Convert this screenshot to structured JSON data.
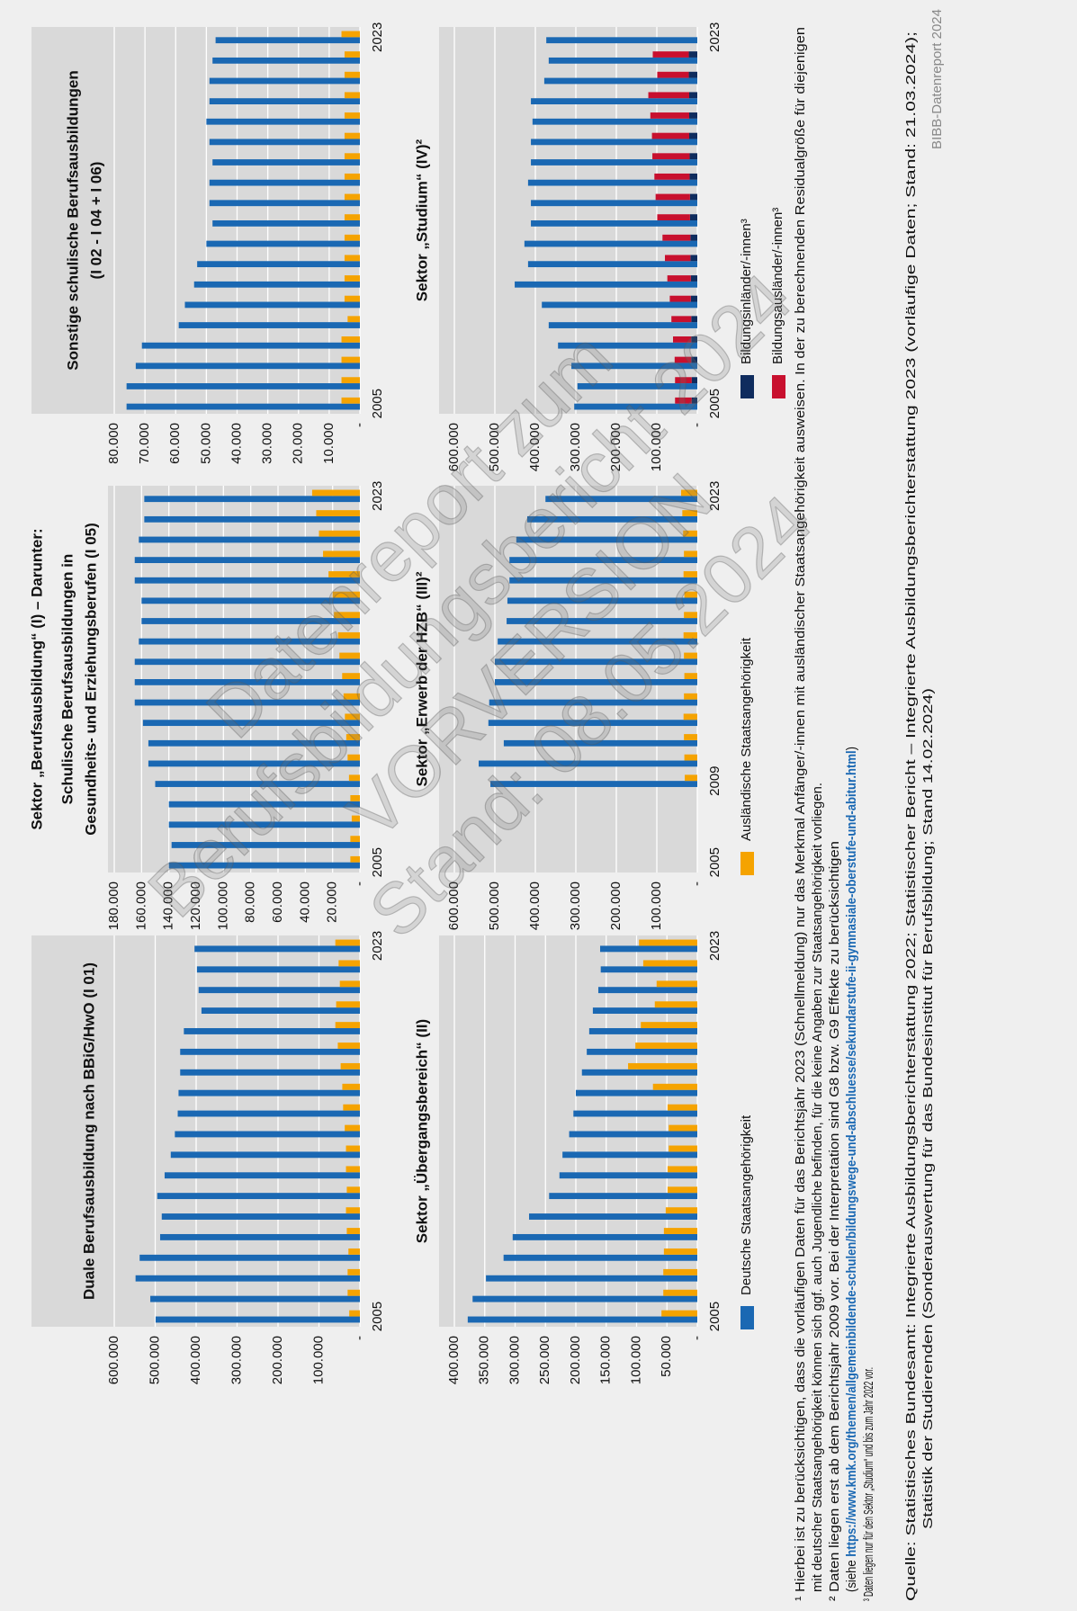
{
  "header": "Sektor „Berufsausbildung“ (I) – Darunter:",
  "chart_data": [
    {
      "type": "bar",
      "title": [
        "Duale Berufsausbildung nach BBiG/HwO (I 01)"
      ],
      "categories": [
        "2005",
        null,
        null,
        null,
        null,
        null,
        null,
        null,
        null,
        null,
        null,
        null,
        null,
        null,
        null,
        null,
        null,
        null,
        "2023"
      ],
      "series": [
        {
          "color": "#1a68b3",
          "values": [
            499000,
            512000,
            548000,
            538000,
            488000,
            484000,
            495000,
            477000,
            462000,
            452000,
            445000,
            443000,
            439000,
            439000,
            430000,
            387000,
            394000,
            398000,
            404000
          ]
        },
        {
          "color": "#f5a300",
          "values": [
            26000,
            30000,
            30000,
            28000,
            32000,
            34000,
            32000,
            34000,
            34000,
            37000,
            41000,
            43000,
            47000,
            54000,
            60000,
            58000,
            49000,
            52000,
            60000
          ]
        }
      ],
      "ylim": [
        0,
        600000
      ],
      "yticks": [
        {
          "value": 0,
          "label": "-"
        },
        {
          "value": 100000,
          "label": "100.000"
        },
        {
          "value": 200000,
          "label": "200.000"
        },
        {
          "value": 300000,
          "label": "300.000"
        },
        {
          "value": 400000,
          "label": "400.000"
        },
        {
          "value": 500000,
          "label": "500.000"
        },
        {
          "value": 600000,
          "label": "600.000"
        }
      ],
      "grid": true
    },
    {
      "type": "bar",
      "title": [
        "Schulische Berufsausbildungen in",
        "Gesundheits- und Erziehungsberufen (I 05)"
      ],
      "categories": [
        "2005",
        null,
        null,
        null,
        null,
        null,
        null,
        null,
        null,
        null,
        null,
        null,
        null,
        null,
        null,
        null,
        null,
        null,
        "2023"
      ],
      "series": [
        {
          "color": "#1a68b3",
          "values": [
            140000,
            138000,
            140000,
            140000,
            150000,
            155000,
            155000,
            159000,
            165000,
            165000,
            165000,
            162000,
            160000,
            160000,
            165000,
            165000,
            162000,
            158000,
            158000
          ]
        },
        {
          "color": "#f5a300",
          "values": [
            7000,
            7000,
            6000,
            7000,
            8000,
            9000,
            10000,
            11000,
            12000,
            13000,
            15000,
            16000,
            19000,
            20000,
            23000,
            27000,
            30000,
            32000,
            35000
          ]
        }
      ],
      "ylim": [
        0,
        180000
      ],
      "yticks": [
        {
          "value": 0,
          "label": "-"
        },
        {
          "value": 20000,
          "label": "20.000"
        },
        {
          "value": 40000,
          "label": "40.000"
        },
        {
          "value": 60000,
          "label": "60.000"
        },
        {
          "value": 80000,
          "label": "80.000"
        },
        {
          "value": 100000,
          "label": "100.000"
        },
        {
          "value": 120000,
          "label": "120.000"
        },
        {
          "value": 140000,
          "label": "140.000"
        },
        {
          "value": 160000,
          "label": "160.000"
        },
        {
          "value": 180000,
          "label": "180.000"
        }
      ],
      "grid": true
    },
    {
      "type": "bar",
      "title": [
        "Sonstige schulische Berufsausbildungen",
        "(I 02 - I 04 + I 06)"
      ],
      "categories": [
        "2005",
        null,
        null,
        null,
        null,
        null,
        null,
        null,
        null,
        null,
        null,
        null,
        null,
        null,
        null,
        null,
        null,
        null,
        "2023"
      ],
      "series": [
        {
          "color": "#1a68b3",
          "values": [
            76000,
            76000,
            73000,
            71000,
            59000,
            57000,
            54000,
            53000,
            50000,
            48000,
            49000,
            49000,
            48000,
            49000,
            50000,
            49000,
            49000,
            48000,
            47000
          ]
        },
        {
          "color": "#f5a300",
          "values": [
            6000,
            6000,
            6000,
            6000,
            4000,
            5000,
            5000,
            5000,
            5000,
            5000,
            5000,
            5000,
            5000,
            5000,
            5000,
            5000,
            5000,
            5000,
            6000
          ]
        }
      ],
      "ylim": [
        0,
        80000
      ],
      "yticks": [
        {
          "value": 0,
          "label": "-"
        },
        {
          "value": 10000,
          "label": "10.000"
        },
        {
          "value": 20000,
          "label": "20.000"
        },
        {
          "value": 30000,
          "label": "30.000"
        },
        {
          "value": 40000,
          "label": "40.000"
        },
        {
          "value": 50000,
          "label": "50.000"
        },
        {
          "value": 60000,
          "label": "60.000"
        },
        {
          "value": 70000,
          "label": "70.000"
        },
        {
          "value": 80000,
          "label": "80.000"
        }
      ],
      "grid": true
    },
    {
      "type": "bar",
      "title": [
        "Sektor „Übergangsbereich“ (II)"
      ],
      "categories": [
        "2005",
        null,
        null,
        null,
        null,
        null,
        null,
        null,
        null,
        null,
        null,
        null,
        null,
        null,
        null,
        null,
        null,
        null,
        "2023"
      ],
      "series": [
        {
          "color": "#1a68b3",
          "values": [
            378000,
            370000,
            348000,
            319000,
            304000,
            277000,
            244000,
            227000,
            222000,
            211000,
            204000,
            200000,
            190000,
            182000,
            178000,
            172000,
            163000,
            159000,
            160000
          ]
        },
        {
          "color": "#f5a300",
          "values": [
            59000,
            56000,
            56000,
            55000,
            55000,
            52000,
            49000,
            49000,
            47000,
            47000,
            49000,
            73000,
            114000,
            102000,
            93000,
            70000,
            67000,
            89000,
            96000
          ]
        }
      ],
      "ylim": [
        0,
        400000
      ],
      "yticks": [
        {
          "value": 0,
          "label": "-"
        },
        {
          "value": 50000,
          "label": "50.000"
        },
        {
          "value": 100000,
          "label": "100.000"
        },
        {
          "value": 150000,
          "label": "150.000"
        },
        {
          "value": 200000,
          "label": "200.000"
        },
        {
          "value": 250000,
          "label": "250.000"
        },
        {
          "value": 300000,
          "label": "300.000"
        },
        {
          "value": 350000,
          "label": "350.000"
        },
        {
          "value": 400000,
          "label": "400.000"
        }
      ],
      "grid": true
    },
    {
      "type": "bar",
      "title": [
        "Sektor „Erwerb der HZB“ (III)²"
      ],
      "categories": [
        "2005",
        null,
        null,
        null,
        "2009",
        null,
        null,
        null,
        null,
        null,
        null,
        null,
        null,
        null,
        null,
        null,
        null,
        null,
        "2023"
      ],
      "series": [
        {
          "color": "#1a68b3",
          "values": [
            null,
            null,
            null,
            null,
            511000,
            540000,
            478000,
            516000,
            514000,
            500000,
            500000,
            493000,
            471000,
            469000,
            464000,
            464000,
            447000,
            420000,
            375000
          ]
        },
        {
          "color": "#f5a300",
          "values": [
            null,
            null,
            null,
            null,
            31000,
            32000,
            33000,
            34000,
            33000,
            32000,
            33000,
            34000,
            33000,
            32000,
            34000,
            33000,
            35000,
            37000,
            40000
          ]
        }
      ],
      "ylim": [
        0,
        600000
      ],
      "yticks": [
        {
          "value": 0,
          "label": "-"
        },
        {
          "value": 100000,
          "label": "100.000"
        },
        {
          "value": 200000,
          "label": "200.000"
        },
        {
          "value": 300000,
          "label": "300.000"
        },
        {
          "value": 400000,
          "label": "400.000"
        },
        {
          "value": 500000,
          "label": "500.000"
        },
        {
          "value": 600000,
          "label": "600.000"
        }
      ],
      "grid": true
    },
    {
      "type": "bar",
      "title": [
        "Sektor „Studium“ (IV)²"
      ],
      "categories": [
        "2005",
        null,
        null,
        null,
        null,
        null,
        null,
        null,
        null,
        null,
        null,
        null,
        null,
        null,
        null,
        null,
        null,
        null,
        "2023"
      ],
      "series": [
        {
          "color": "#1a68b3",
          "values": [
            304000,
            296000,
            311000,
            344000,
            367000,
            384000,
            451000,
            418000,
            427000,
            411000,
            411000,
            418000,
            411000,
            411000,
            407000,
            411000,
            378000,
            367000,
            373000
          ]
        },
        {
          "color": "#0f2c5e",
          "stack": 1,
          "values": [
            14000,
            14000,
            15000,
            15000,
            15000,
            16000,
            16000,
            17000,
            17000,
            18000,
            18000,
            19000,
            19000,
            20000,
            20000,
            20000,
            21000,
            21000,
            null
          ]
        },
        {
          "color": "#c8102e",
          "stack": 1,
          "values": [
            41000,
            41000,
            41000,
            45000,
            49000,
            52000,
            58000,
            63000,
            69000,
            81000,
            85000,
            87000,
            92000,
            92000,
            96000,
            101000,
            78000,
            89000,
            null
          ]
        }
      ],
      "ylim": [
        0,
        600000
      ],
      "yticks": [
        {
          "value": 0,
          "label": "-"
        },
        {
          "value": 100000,
          "label": "100.000"
        },
        {
          "value": 200000,
          "label": "200.000"
        },
        {
          "value": 300000,
          "label": "300.000"
        },
        {
          "value": 400000,
          "label": "400.000"
        },
        {
          "value": 500000,
          "label": "500.000"
        },
        {
          "value": 600000,
          "label": "600.000"
        }
      ],
      "grid": true
    }
  ],
  "legend": [
    {
      "name": "Deutsche Staatsangehörigkeit",
      "color": "#1a68b3"
    },
    {
      "name": "Ausländische Staatsangehörigkeit",
      "color": "#f5a300"
    },
    {
      "name": "Bildungsinländer/-innen³",
      "color": "#0f2c5e"
    },
    {
      "name": "Bildungsausländer/-innen³",
      "color": "#c8102e"
    }
  ],
  "footnotes": [
    "¹ Hierbei ist zu berücksichtigen, dass die vorläufigen Daten für das Berichtsjahr 2023 (Schnellmeldung) nur das Merkmal Anfänger/-innen mit ausländischer Staatsangehörigkeit ausweisen. In der zu berechnenden Residualgröße für diejenigen",
    "mit deutscher Staatsangehörigkeit können sich ggf. auch Jugendliche befinden, für die keine Angaben zur Staatsangehörigkeit vorliegen.",
    "² Daten liegen erst ab dem Berichtsjahr 2009 vor. Bei der Interpretation sind G8 bzw. G9 Effekte zu berücksichtigen"
  ],
  "link_note": {
    "open": "(siehe ",
    "url": "https://www.kmk.org/themen/allgemeinbildende-schulen/bildungswege-und-abschluesse/sekundarstufe-ii-gymnasiale-oberstufe-und-abitur.html",
    "close": ")"
  },
  "footnote3": "³ Daten liegen nur für den Sektor „Studium“ und bis zum Jahr 2022 vor.",
  "source": [
    "Quelle: Statistisches Bundesamt: Integrierte Ausbildungsberichterstattung 2022; Statistischer Bericht – Integrierte Ausbildungsberichterstattung 2023 (vorläufige Daten; Stand: 21.03.2024);",
    "Statistik der Studierenden (Sonderauswertung für das Bundesinstitut für Berufsbildung; Stand 14.02.2024)"
  ],
  "publisher": "BIBB-Datenreport 2024",
  "watermark": [
    "Datenreport zum",
    "Berufsbildungsbericht 2024",
    "VORVERSION",
    "Stand: 08.05.2024"
  ]
}
